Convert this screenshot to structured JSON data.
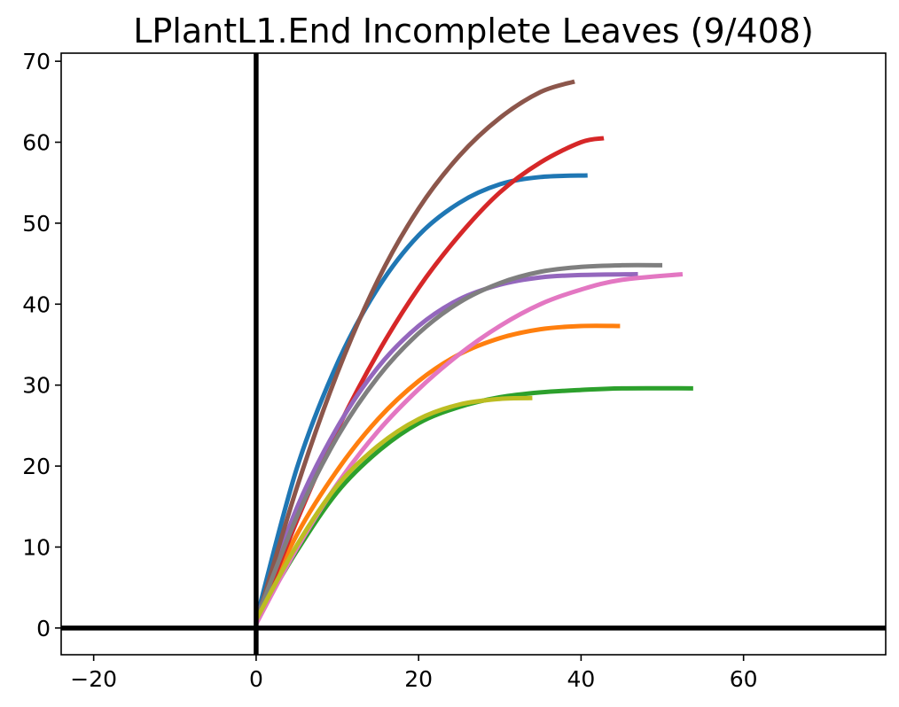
{
  "chart_data": {
    "type": "line",
    "title": "LPlantL1.End Incomplete Leaves (9/408)",
    "xlabel": "",
    "ylabel": "",
    "xlim": [
      -24,
      77.5
    ],
    "ylim": [
      -3.3,
      71
    ],
    "xticks": [
      {
        "value": -20,
        "label": "−20"
      },
      {
        "value": 0,
        "label": "0"
      },
      {
        "value": 20,
        "label": "20"
      },
      {
        "value": 40,
        "label": "40"
      },
      {
        "value": 60,
        "label": "60"
      }
    ],
    "yticks": [
      {
        "value": 0,
        "label": "0"
      },
      {
        "value": 10,
        "label": "10"
      },
      {
        "value": 20,
        "label": "20"
      },
      {
        "value": 30,
        "label": "30"
      },
      {
        "value": 40,
        "label": "40"
      },
      {
        "value": 50,
        "label": "50"
      },
      {
        "value": 60,
        "label": "60"
      },
      {
        "value": 70,
        "label": "70"
      }
    ],
    "reference_lines": {
      "x": 0,
      "y": 0
    },
    "grid": false,
    "legend": "none",
    "series": [
      {
        "color": "#1f77b4",
        "points": [
          [
            0,
            1
          ],
          [
            5,
            19.7
          ],
          [
            10,
            32.7
          ],
          [
            15,
            42
          ],
          [
            20,
            48.5
          ],
          [
            25,
            52.5
          ],
          [
            30,
            54.8
          ],
          [
            35,
            55.7
          ],
          [
            40.8,
            55.9
          ]
        ]
      },
      {
        "color": "#ff7f0e",
        "points": [
          [
            0,
            1
          ],
          [
            5,
            11.5
          ],
          [
            10,
            19.5
          ],
          [
            15,
            25.8
          ],
          [
            20,
            30.5
          ],
          [
            25,
            33.8
          ],
          [
            30,
            35.8
          ],
          [
            35,
            36.9
          ],
          [
            40,
            37.3
          ],
          [
            44.8,
            37.3
          ]
        ]
      },
      {
        "color": "#2ca02c",
        "points": [
          [
            0,
            1
          ],
          [
            5,
            9.5
          ],
          [
            10,
            16.8
          ],
          [
            15,
            21.8
          ],
          [
            20,
            25.3
          ],
          [
            25,
            27.3
          ],
          [
            30,
            28.5
          ],
          [
            35,
            29.1
          ],
          [
            40,
            29.4
          ],
          [
            45,
            29.6
          ],
          [
            53.8,
            29.6
          ]
        ]
      },
      {
        "color": "#d62728",
        "points": [
          [
            0,
            0.5
          ],
          [
            5,
            13.2
          ],
          [
            10,
            24.5
          ],
          [
            15,
            34
          ],
          [
            20,
            42
          ],
          [
            25,
            48.5
          ],
          [
            30,
            53.8
          ],
          [
            35,
            57.5
          ],
          [
            40,
            60
          ],
          [
            42.8,
            60.5
          ]
        ]
      },
      {
        "color": "#9467bd",
        "points": [
          [
            0,
            1
          ],
          [
            5,
            14.8
          ],
          [
            10,
            24.8
          ],
          [
            15,
            32.2
          ],
          [
            20,
            37.3
          ],
          [
            25,
            40.6
          ],
          [
            30,
            42.4
          ],
          [
            35,
            43.3
          ],
          [
            40,
            43.6
          ],
          [
            47,
            43.7
          ]
        ]
      },
      {
        "color": "#8c564b",
        "points": [
          [
            0,
            0.5
          ],
          [
            5,
            17.3
          ],
          [
            10,
            31.5
          ],
          [
            15,
            43
          ],
          [
            20,
            51.8
          ],
          [
            25,
            58.3
          ],
          [
            30,
            63
          ],
          [
            35,
            66.2
          ],
          [
            39.2,
            67.5
          ]
        ]
      },
      {
        "color": "#e377c2",
        "points": [
          [
            0,
            0.5
          ],
          [
            5,
            9.8
          ],
          [
            10,
            17.8
          ],
          [
            15,
            24.3
          ],
          [
            20,
            29.5
          ],
          [
            25,
            33.8
          ],
          [
            30,
            37.3
          ],
          [
            35,
            40
          ],
          [
            40,
            41.8
          ],
          [
            45,
            43
          ],
          [
            52.5,
            43.7
          ]
        ]
      },
      {
        "color": "#7f7f7f",
        "points": [
          [
            0,
            1
          ],
          [
            5,
            13.7
          ],
          [
            10,
            23.6
          ],
          [
            15,
            31
          ],
          [
            20,
            36.4
          ],
          [
            25,
            40.2
          ],
          [
            30,
            42.6
          ],
          [
            35,
            44
          ],
          [
            40,
            44.6
          ],
          [
            45,
            44.8
          ],
          [
            50,
            44.8
          ]
        ]
      },
      {
        "color": "#bcbd22",
        "points": [
          [
            0,
            1
          ],
          [
            5,
            10.2
          ],
          [
            10,
            17.6
          ],
          [
            15,
            22.5
          ],
          [
            20,
            25.8
          ],
          [
            25,
            27.6
          ],
          [
            30,
            28.3
          ],
          [
            34,
            28.4
          ]
        ]
      }
    ]
  }
}
